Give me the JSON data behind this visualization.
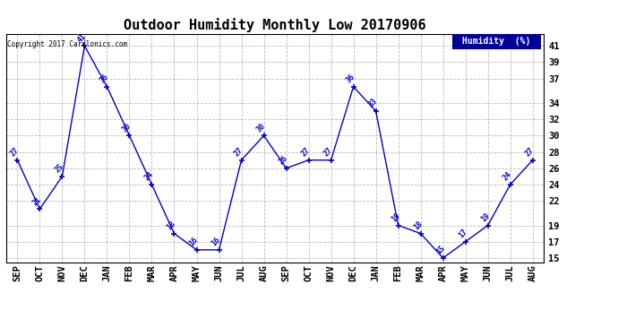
{
  "title": "Outdoor Humidity Monthly Low 20170906",
  "copyright": "Copyright 2017 Cardlonics.com",
  "legend_label": "Humidity  (%)",
  "x_labels": [
    "SEP",
    "OCT",
    "NOV",
    "DEC",
    "JAN",
    "FEB",
    "MAR",
    "APR",
    "MAY",
    "JUN",
    "JUL",
    "AUG",
    "SEP",
    "OCT",
    "NOV",
    "DEC",
    "JAN",
    "FEB",
    "MAR",
    "APR",
    "MAY",
    "JUN",
    "JUL",
    "AUG"
  ],
  "y_values": [
    27,
    21,
    25,
    41,
    36,
    30,
    24,
    18,
    16,
    16,
    27,
    30,
    26,
    27,
    27,
    36,
    33,
    19,
    18,
    15,
    17,
    19,
    24,
    27
  ],
  "line_color": "#0000cc",
  "marker_color": "#0000cc",
  "grid_color": "#aaaaaa",
  "background_color": "#ffffff",
  "plot_bg_color": "#ffffff",
  "ylim": [
    14.5,
    42.5
  ],
  "yticks": [
    15,
    17,
    19,
    22,
    24,
    26,
    28,
    30,
    32,
    34,
    37,
    39,
    41
  ],
  "title_fontsize": 11,
  "tick_fontsize": 7.5,
  "legend_bg_color": "#000099",
  "legend_text_color": "#ffffff"
}
